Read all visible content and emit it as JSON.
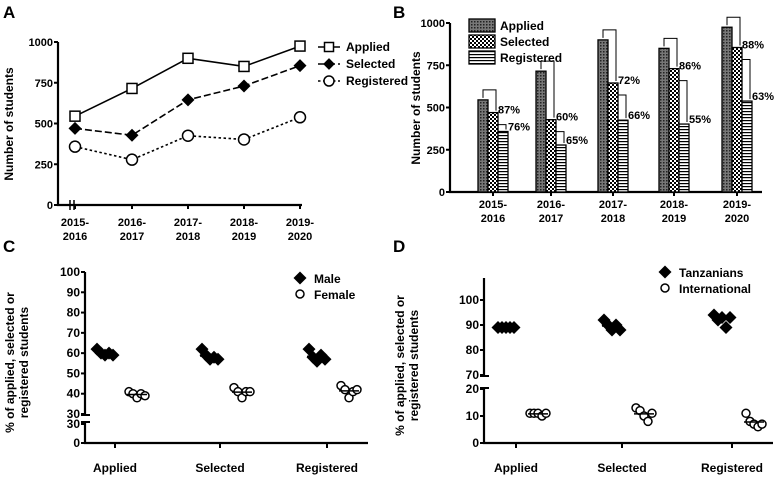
{
  "chart_data": [
    {
      "panel": "A",
      "type": "line",
      "categories": [
        "2015-2016",
        "2016-2017",
        "2017-2018",
        "2018-2019",
        "2019-2020"
      ],
      "series": [
        {
          "name": "Applied",
          "values": [
            545,
            715,
            900,
            850,
            975
          ],
          "marker": "open-square",
          "line": "solid"
        },
        {
          "name": "Selected",
          "values": [
            470,
            428,
            645,
            730,
            855
          ],
          "marker": "filled-diamond",
          "line": "dashed"
        },
        {
          "name": "Registered",
          "values": [
            358,
            278,
            425,
            402,
            538
          ],
          "marker": "open-circle",
          "line": "dotted"
        }
      ],
      "ylabel": "Number of students",
      "yticks": [
        "0",
        "250",
        "500",
        "750",
        "1000"
      ],
      "ylim": [
        0,
        1000
      ],
      "legend": "right"
    },
    {
      "panel": "B",
      "type": "bar",
      "categories": [
        "2015-2016",
        "2016-2017",
        "2017-2018",
        "2018-2019",
        "2019-2020"
      ],
      "series": [
        {
          "name": "Applied",
          "values": [
            545,
            715,
            900,
            850,
            975
          ]
        },
        {
          "name": "Selected",
          "values": [
            470,
            428,
            645,
            730,
            855
          ]
        },
        {
          "name": "Registered",
          "values": [
            358,
            278,
            425,
            402,
            538
          ]
        }
      ],
      "selected_pct_labels": [
        "87%",
        "60%",
        "72%",
        "86%",
        "88%"
      ],
      "registered_pct_labels": [
        "76%",
        "65%",
        "66%",
        "55%",
        "63%"
      ],
      "ylabel": "Number of students",
      "yticks": [
        "0",
        "250",
        "500",
        "750",
        "1000"
      ],
      "ylim": [
        0,
        1000
      ],
      "legend": "top-left"
    },
    {
      "panel": "C",
      "type": "scatter",
      "categories": [
        "Applied",
        "Selected",
        "Registered"
      ],
      "series": [
        {
          "name": "Male",
          "marker": "filled-diamond",
          "values": [
            [
              62,
              60,
              59,
              60,
              59
            ],
            [
              62,
              59,
              57,
              58,
              57
            ],
            [
              62,
              58,
              56,
              59,
              57
            ]
          ]
        },
        {
          "name": "Female",
          "marker": "open-circle",
          "values": [
            [
              41,
              40,
              38,
              40,
              39
            ],
            [
              43,
              41,
              38,
              41,
              41
            ],
            [
              44,
              42,
              38,
              41,
              42
            ]
          ]
        }
      ],
      "ylabel": "% of applied, selected or registered students",
      "yticks_upper": [
        "30",
        "40",
        "50",
        "60",
        "70",
        "80",
        "90",
        "100"
      ],
      "yticks_lower": [
        "0",
        "30"
      ],
      "ylim": [
        0,
        100
      ],
      "axis_break": [
        30,
        30
      ],
      "legend": "top-right"
    },
    {
      "panel": "D",
      "type": "scatter",
      "categories": [
        "Applied",
        "Selected",
        "Registered"
      ],
      "series": [
        {
          "name": "Tanzanians",
          "marker": "filled-diamond",
          "values": [
            [
              89,
              89,
              89,
              89,
              89
            ],
            [
              92,
              90,
              88,
              90,
              88
            ],
            [
              94,
              92,
              93,
              89,
              93
            ]
          ]
        },
        {
          "name": "International",
          "marker": "open-circle",
          "values": [
            [
              11,
              11,
              11,
              10,
              11
            ],
            [
              13,
              12,
              10,
              8,
              11
            ],
            [
              11,
              8,
              7,
              6,
              7
            ]
          ]
        }
      ],
      "ylabel": "% of applied, selected or registered students",
      "yticks_upper": [
        "70",
        "80",
        "90",
        "100"
      ],
      "yticks_lower": [
        "0",
        "10",
        "20"
      ],
      "ylim": [
        0,
        105
      ],
      "axis_break": [
        20,
        70
      ],
      "legend": "top-right"
    }
  ]
}
